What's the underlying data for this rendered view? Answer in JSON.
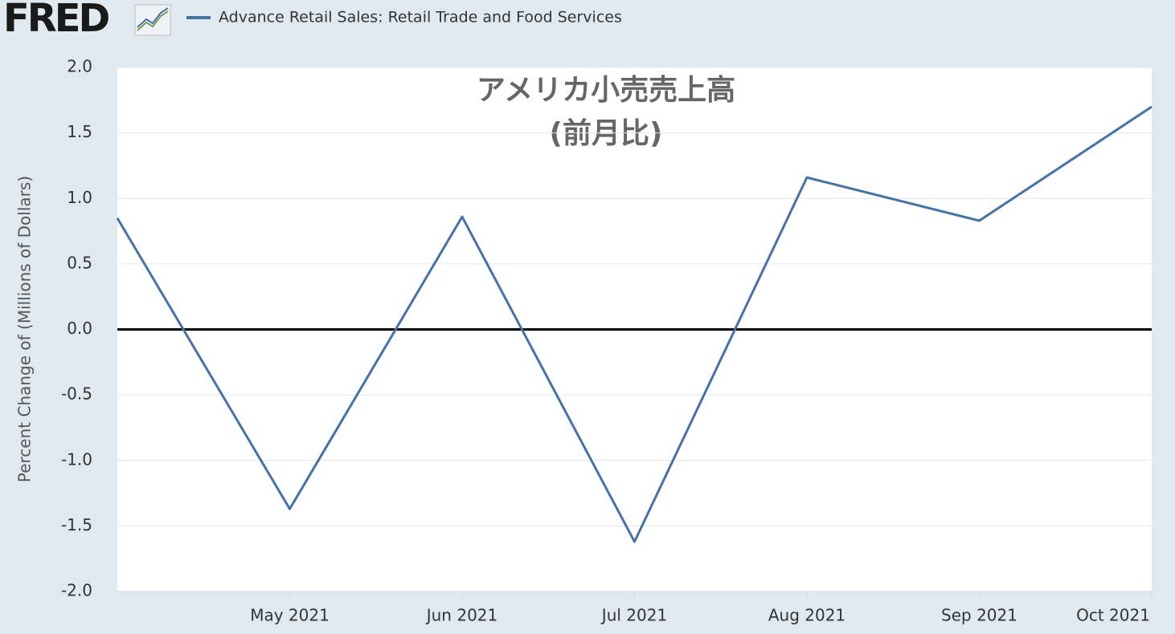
{
  "logo": "FRED",
  "chart_data": {
    "type": "line",
    "title": "アメリカ小売売上高",
    "subtitle": "(前月比)",
    "y_label": "Percent Change of (Millions of Dollars)",
    "categories": [
      null,
      "May 2021",
      "Jun 2021",
      "Jul 2021",
      "Aug 2021",
      "Sep 2021",
      "Oct 2021"
    ],
    "series": [
      {
        "name": "Advance Retail Sales: Retail Trade and Food Services",
        "color": "#4572a7",
        "values": [
          0.85,
          -1.37,
          0.86,
          -1.62,
          1.16,
          0.83,
          1.7
        ]
      }
    ],
    "ylim": [
      -2,
      2
    ],
    "yticks": [
      {
        "value": -2,
        "label": "-2.0"
      },
      -1.5,
      {
        "value": -1,
        "label": "-1.0"
      },
      -0.5,
      {
        "value": 0,
        "label": "0.0"
      },
      0.5,
      {
        "value": 1,
        "label": "1.0"
      },
      1.5,
      {
        "value": 2,
        "label": "2.0"
      }
    ],
    "grid": true,
    "zero_line": true
  }
}
